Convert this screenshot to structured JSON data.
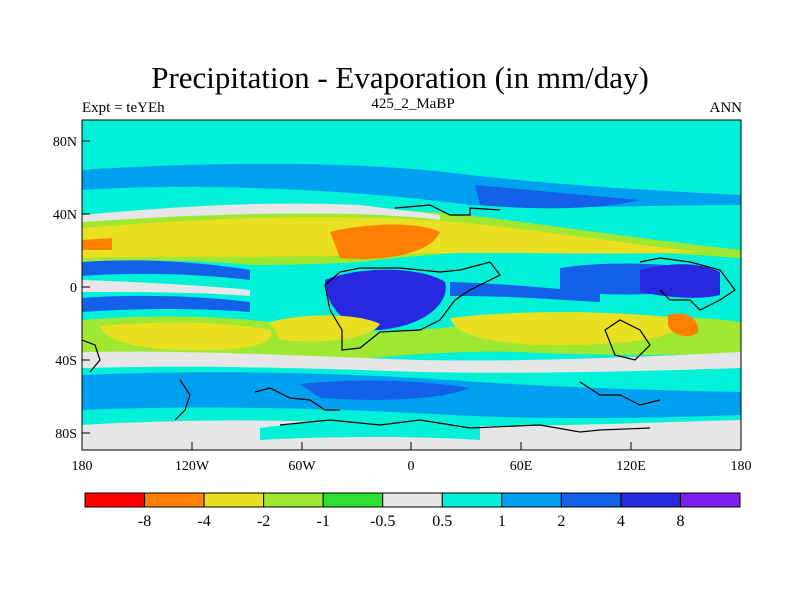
{
  "title": "Precipitation - Evaporation (in mm/day)",
  "left_label": "Expt = teYEh",
  "center_label": "425_2_MaBP",
  "right_label": "ANN",
  "map": {
    "lat_ticks": [
      "80N",
      "40N",
      "0",
      "40S",
      "80S"
    ],
    "lon_ticks": [
      "180",
      "120W",
      "60W",
      "0",
      "60E",
      "120E",
      "180"
    ]
  },
  "colorbar": {
    "labels": [
      "-8",
      "-4",
      "-2",
      "-1",
      "-0.5",
      "0.5",
      "1",
      "2",
      "4",
      "8"
    ],
    "colors": [
      "#ff0000",
      "#ff7f00",
      "#e8e020",
      "#9fe831",
      "#30e030",
      "#e6e6e6",
      "#00f0d8",
      "#00a0f0",
      "#1560e8",
      "#2828e0",
      "#8020f0"
    ]
  },
  "palette": {
    "dry_strong": "#ff7f00",
    "dry": "#e8e020",
    "dry_mild": "#9fe831",
    "neutral": "#e6e6e6",
    "wet_mild": "#00f0d8",
    "wet": "#00a0f0",
    "wet_strong": "#1560e8",
    "wettest": "#2828e0"
  }
}
